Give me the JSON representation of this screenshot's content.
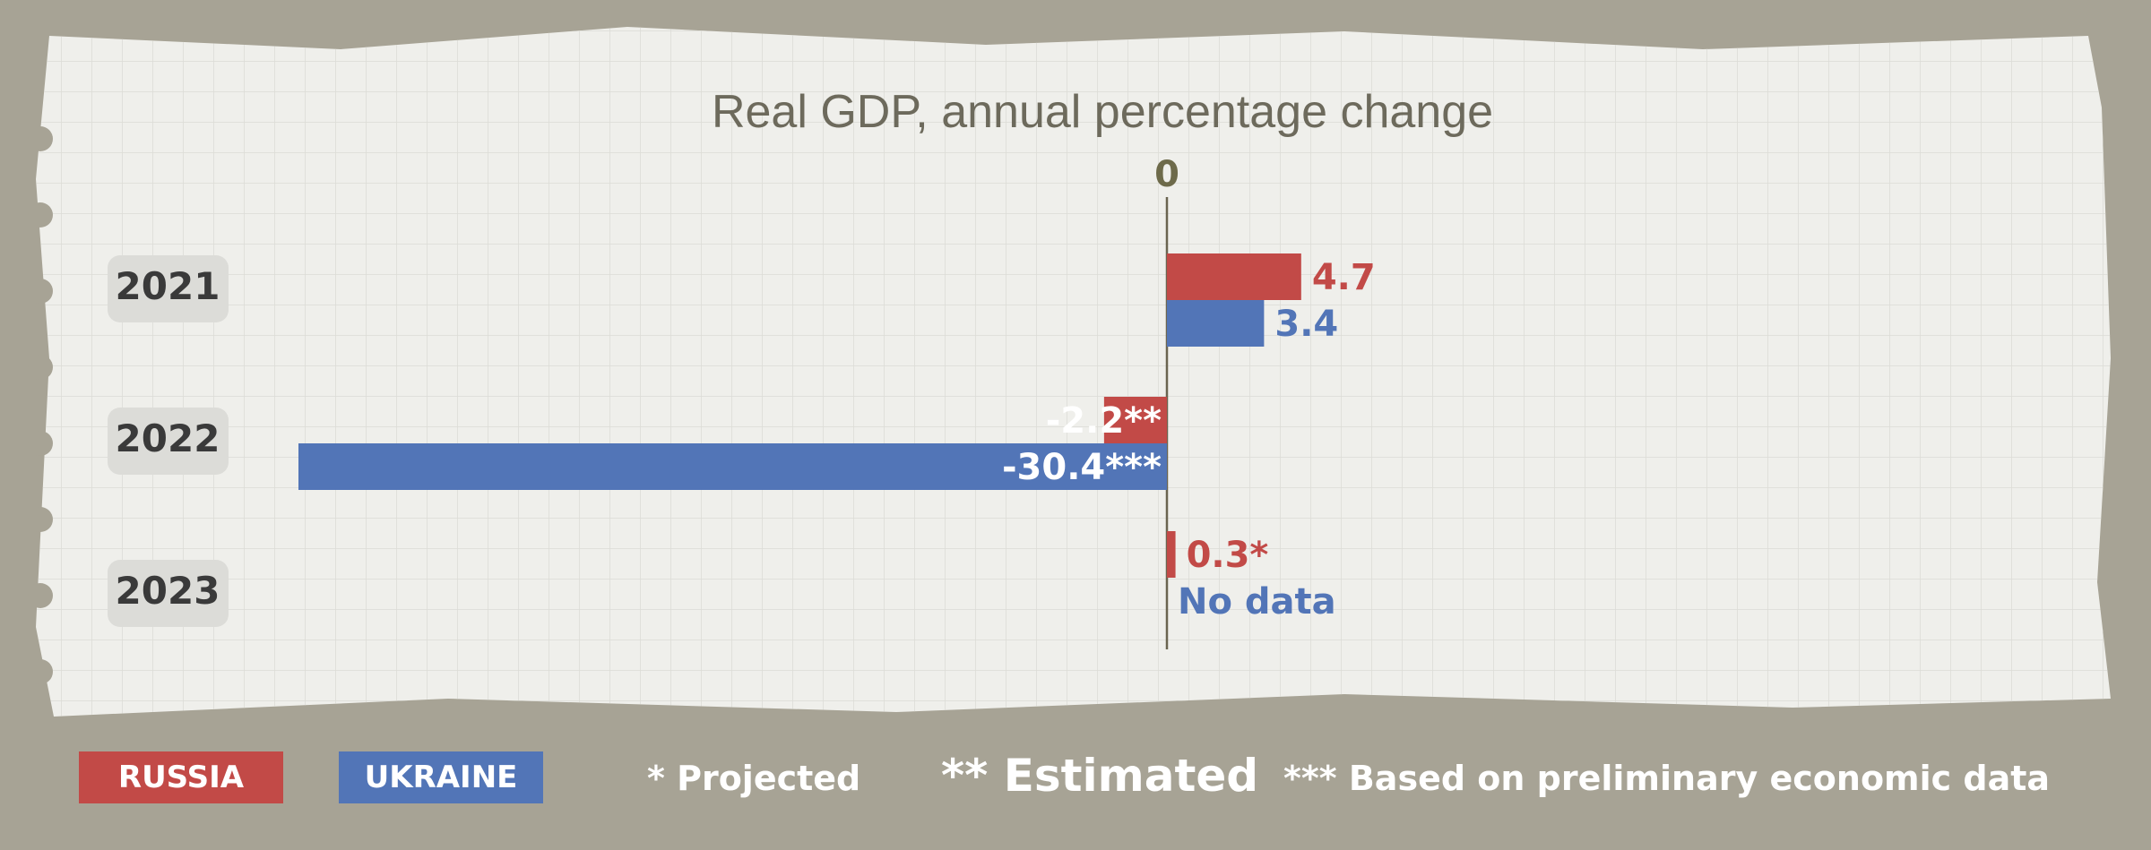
{
  "chart_data": {
    "type": "bar",
    "orientation": "horizontal",
    "title": "Real GDP, annual percentage change",
    "zero_label": "0",
    "categories": [
      "2021",
      "2022",
      "2023"
    ],
    "series": [
      {
        "name": "RUSSIA",
        "color": "#c24a47",
        "values": [
          4.7,
          -2.2,
          0.3
        ],
        "labels": [
          "4.7",
          "-2.2**",
          "0.3*"
        ]
      },
      {
        "name": "UKRAINE",
        "color": "#5275b7",
        "values": [
          3.4,
          -30.4,
          null
        ],
        "labels": [
          "3.4",
          "-30.4***",
          "No data"
        ]
      }
    ],
    "xlim": [
      -30.4,
      16
    ]
  },
  "legend": {
    "russia": "RUSSIA",
    "ukraine": "UKRAINE",
    "note_projected": "* Projected",
    "note_estimated": "** Estimated",
    "note_preliminary": "*** Based on preliminary economic data"
  }
}
